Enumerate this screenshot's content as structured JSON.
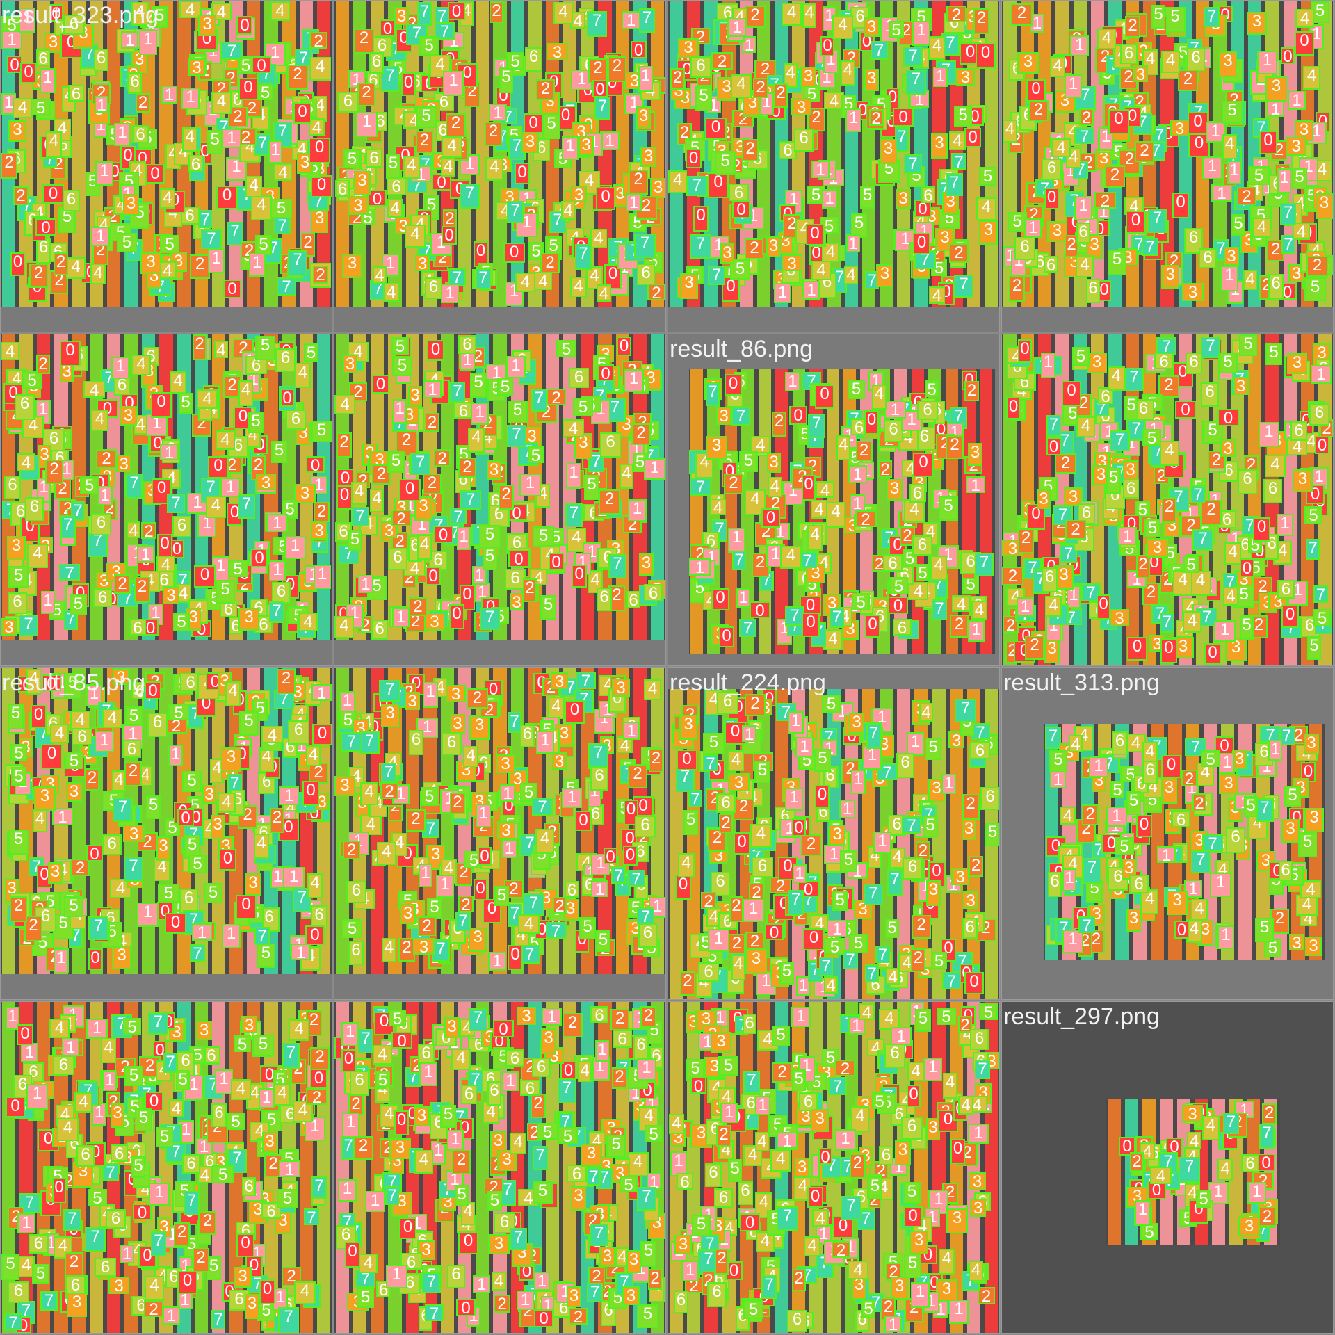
{
  "grid": {
    "tiles": [
      {
        "title": "result_323.png",
        "dark": false
      },
      {
        "title": "",
        "dark": false
      },
      {
        "title": "",
        "dark": false
      },
      {
        "title": "",
        "dark": false
      },
      {
        "title": "",
        "dark": false
      },
      {
        "title": "",
        "dark": false
      },
      {
        "title": "result_86.png",
        "dark": false
      },
      {
        "title": "",
        "dark": false
      },
      {
        "title": "result_85.png",
        "dark": false
      },
      {
        "title": "",
        "dark": false
      },
      {
        "title": "result_224.png",
        "dark": false
      },
      {
        "title": "result_313.png",
        "dark": false
      },
      {
        "title": "",
        "dark": false
      },
      {
        "title": "",
        "dark": false
      },
      {
        "title": "",
        "dark": false
      },
      {
        "title": "result_297.png",
        "dark": true
      }
    ]
  },
  "detection_classes": [
    "0",
    "1",
    "2",
    "3",
    "4",
    "5",
    "6",
    "7"
  ],
  "class_colors": {
    "0": "#ff3b3b",
    "1": "#ff9aa0",
    "2": "#f07a2a",
    "3": "#f4a020",
    "4": "#d8c23a",
    "5": "#7fe02a",
    "6": "#b8d43a",
    "7": "#3ed8a0"
  },
  "box_outline_color": "#55ee22"
}
